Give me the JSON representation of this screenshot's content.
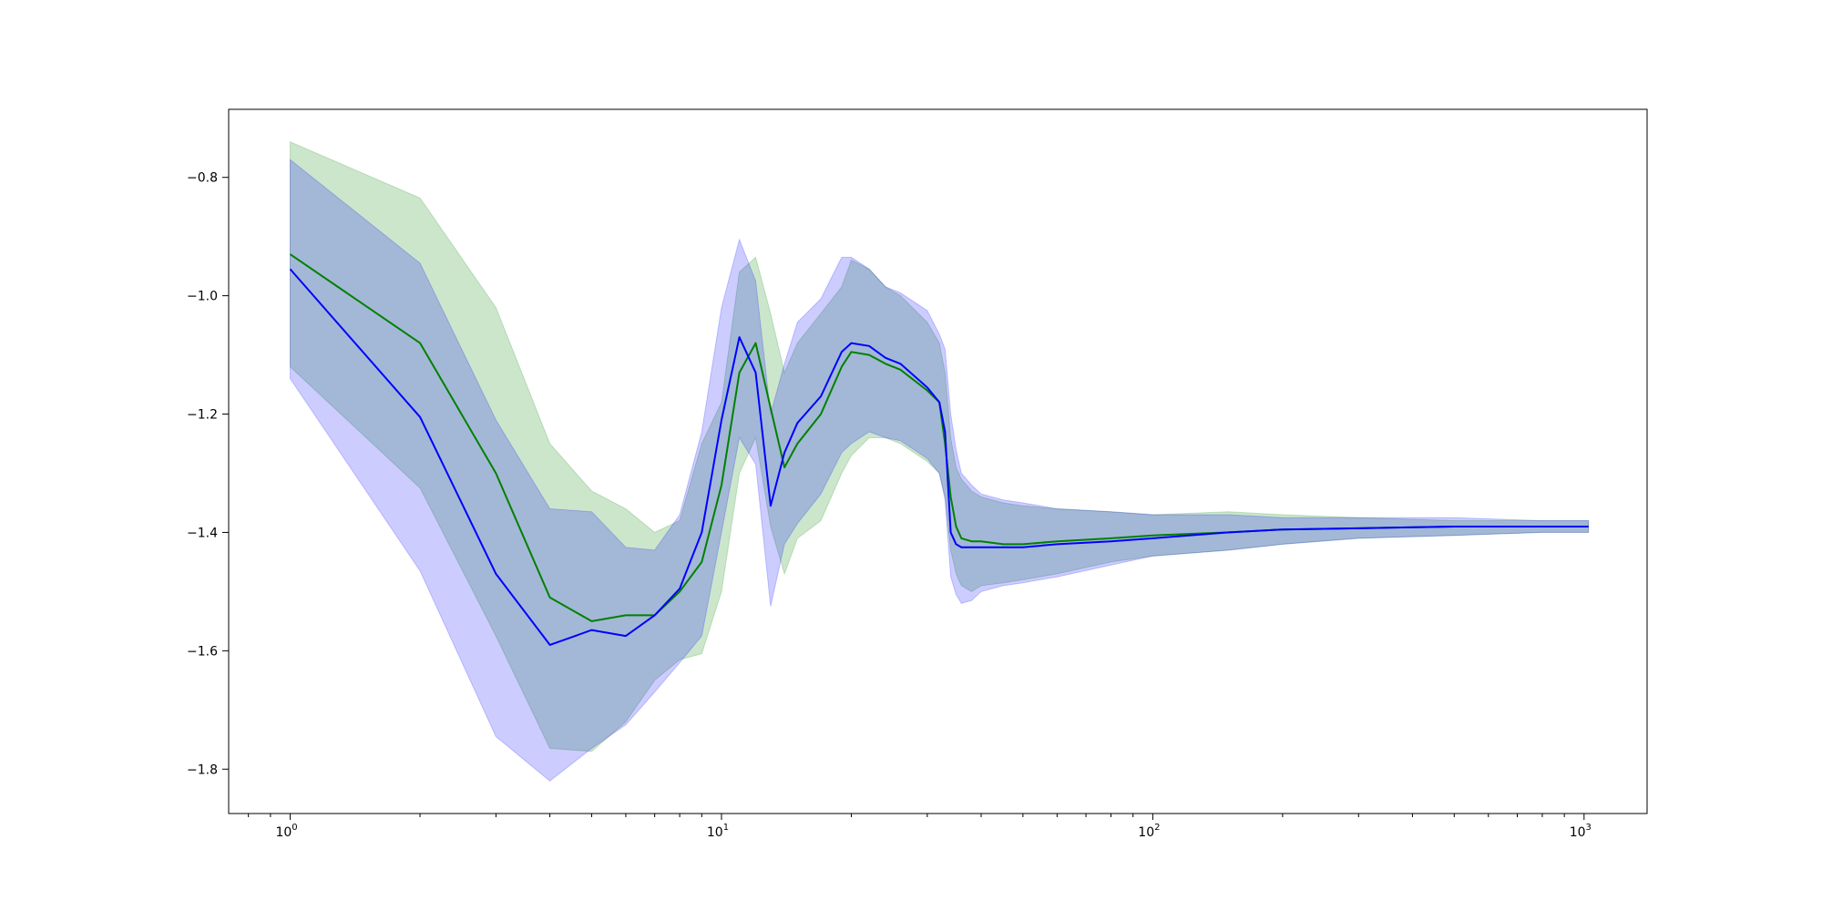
{
  "chart_data": {
    "type": "line",
    "title": "",
    "xlabel": "",
    "ylabel": "",
    "xscale": "log",
    "xlim": [
      0.72,
      1400
    ],
    "ylim": [
      -1.875,
      -0.685
    ],
    "grid": false,
    "legend": "none",
    "x_ticks": [
      {
        "value": 1,
        "label": "10",
        "exp": "0"
      },
      {
        "value": 10,
        "label": "10",
        "exp": "1"
      },
      {
        "value": 100,
        "label": "10",
        "exp": "2"
      },
      {
        "value": 1000,
        "label": "10",
        "exp": "3"
      }
    ],
    "y_ticks": [
      {
        "value": -0.8,
        "label": "−0.8"
      },
      {
        "value": -1.0,
        "label": "−1.0"
      },
      {
        "value": -1.2,
        "label": "−1.2"
      },
      {
        "value": -1.4,
        "label": "−1.4"
      },
      {
        "value": -1.6,
        "label": "−1.6"
      },
      {
        "value": -1.8,
        "label": "−1.8"
      }
    ],
    "series": [
      {
        "color": "#008000",
        "band_color": "#008000",
        "band_opacity": 0.2,
        "x": [
          1,
          2,
          3,
          4,
          5,
          6,
          7,
          8,
          9,
          10,
          11,
          12,
          13,
          14,
          15,
          17,
          19,
          20,
          22,
          24,
          26,
          30,
          32,
          33,
          34,
          35,
          36,
          38,
          40,
          45,
          50,
          60,
          80,
          100,
          150,
          200,
          300,
          500,
          800,
          1024
        ],
        "values": [
          -0.93,
          -1.08,
          -1.3,
          -1.51,
          -1.55,
          -1.54,
          -1.54,
          -1.5,
          -1.45,
          -1.32,
          -1.13,
          -1.08,
          -1.19,
          -1.29,
          -1.25,
          -1.2,
          -1.12,
          -1.095,
          -1.1,
          -1.115,
          -1.125,
          -1.16,
          -1.18,
          -1.25,
          -1.34,
          -1.39,
          -1.41,
          -1.415,
          -1.415,
          -1.42,
          -1.42,
          -1.415,
          -1.41,
          -1.405,
          -1.4,
          -1.395,
          -1.393,
          -1.39,
          -1.39,
          -1.39
        ],
        "upper": [
          -0.74,
          -0.835,
          -1.02,
          -1.25,
          -1.33,
          -1.36,
          -1.4,
          -1.38,
          -1.25,
          -1.18,
          -0.96,
          -0.935,
          -1.03,
          -1.13,
          -1.08,
          -1.03,
          -0.985,
          -0.94,
          -0.955,
          -0.985,
          -1.0,
          -1.045,
          -1.08,
          -1.13,
          -1.24,
          -1.29,
          -1.31,
          -1.33,
          -1.34,
          -1.35,
          -1.355,
          -1.36,
          -1.365,
          -1.37,
          -1.365,
          -1.37,
          -1.375,
          -1.38,
          -1.38,
          -1.38
        ],
        "lower": [
          -1.12,
          -1.325,
          -1.575,
          -1.765,
          -1.77,
          -1.72,
          -1.65,
          -1.615,
          -1.605,
          -1.5,
          -1.3,
          -1.24,
          -1.39,
          -1.47,
          -1.41,
          -1.38,
          -1.3,
          -1.27,
          -1.24,
          -1.24,
          -1.25,
          -1.28,
          -1.3,
          -1.34,
          -1.43,
          -1.47,
          -1.49,
          -1.5,
          -1.49,
          -1.485,
          -1.48,
          -1.47,
          -1.45,
          -1.44,
          -1.43,
          -1.42,
          -1.41,
          -1.405,
          -1.4,
          -1.4
        ]
      },
      {
        "color": "#0000ff",
        "band_color": "#0000ff",
        "band_opacity": 0.2,
        "x": [
          1,
          2,
          3,
          4,
          5,
          6,
          7,
          8,
          9,
          10,
          11,
          12,
          13,
          14,
          15,
          17,
          19,
          20,
          22,
          24,
          26,
          30,
          32,
          33,
          34,
          35,
          36,
          38,
          40,
          45,
          50,
          60,
          80,
          100,
          150,
          200,
          300,
          500,
          800,
          1024
        ],
        "values": [
          -0.955,
          -1.205,
          -1.47,
          -1.59,
          -1.565,
          -1.575,
          -1.54,
          -1.495,
          -1.4,
          -1.21,
          -1.07,
          -1.13,
          -1.355,
          -1.265,
          -1.215,
          -1.17,
          -1.095,
          -1.08,
          -1.085,
          -1.105,
          -1.115,
          -1.155,
          -1.18,
          -1.23,
          -1.4,
          -1.42,
          -1.425,
          -1.425,
          -1.425,
          -1.425,
          -1.425,
          -1.42,
          -1.415,
          -1.41,
          -1.4,
          -1.395,
          -1.393,
          -1.39,
          -1.39,
          -1.39
        ],
        "upper": [
          -0.77,
          -0.945,
          -1.21,
          -1.36,
          -1.365,
          -1.425,
          -1.43,
          -1.37,
          -1.23,
          -1.02,
          -0.905,
          -0.975,
          -1.2,
          -1.115,
          -1.045,
          -1.005,
          -0.935,
          -0.935,
          -0.955,
          -0.985,
          -0.995,
          -1.025,
          -1.065,
          -1.09,
          -1.2,
          -1.26,
          -1.3,
          -1.32,
          -1.335,
          -1.345,
          -1.35,
          -1.36,
          -1.365,
          -1.37,
          -1.37,
          -1.375,
          -1.375,
          -1.375,
          -1.38,
          -1.38
        ],
        "lower": [
          -1.14,
          -1.465,
          -1.745,
          -1.82,
          -1.765,
          -1.725,
          -1.67,
          -1.62,
          -1.575,
          -1.4,
          -1.24,
          -1.285,
          -1.525,
          -1.42,
          -1.385,
          -1.335,
          -1.265,
          -1.25,
          -1.23,
          -1.24,
          -1.245,
          -1.275,
          -1.3,
          -1.345,
          -1.475,
          -1.505,
          -1.52,
          -1.515,
          -1.5,
          -1.49,
          -1.485,
          -1.475,
          -1.455,
          -1.44,
          -1.43,
          -1.42,
          -1.41,
          -1.405,
          -1.4,
          -1.4
        ]
      }
    ]
  }
}
